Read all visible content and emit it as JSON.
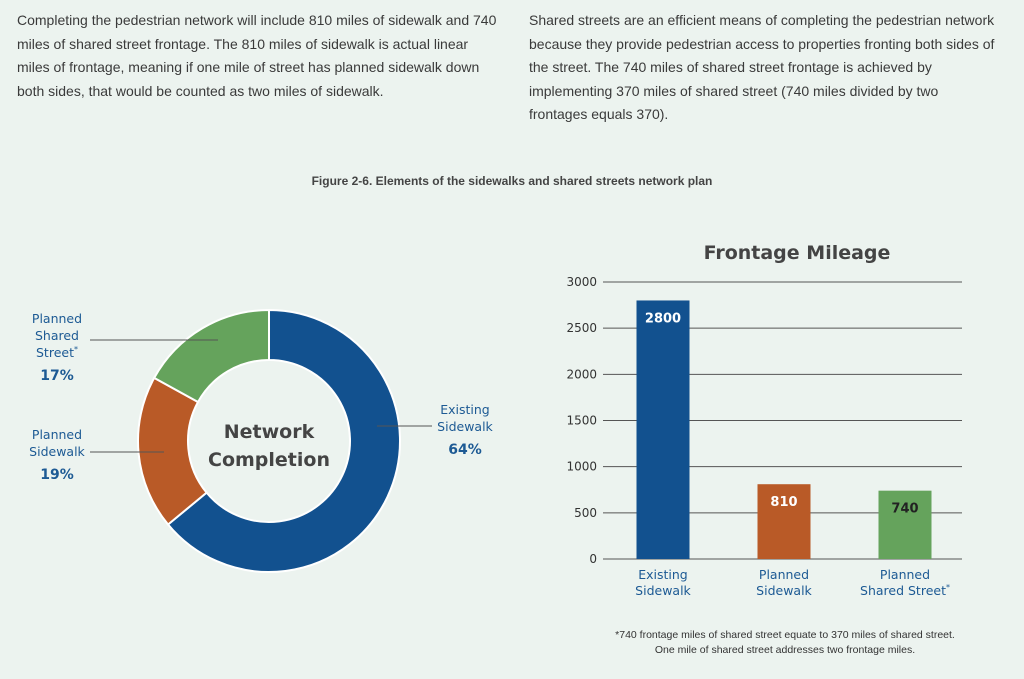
{
  "intro": {
    "left": "Completing the pedestrian network will include 810 miles of sidewalk and 740 miles of shared street frontage. The 810 miles of sidewalk is actual linear miles of frontage, meaning if one mile of street has planned sidewalk down both sides, that would be counted as two miles of sidewalk.",
    "right": "Shared streets are an efficient means of completing the pedestrian network because they provide pedestrian access to properties fronting both sides of the street. The 740 miles of shared street frontage is achieved by implementing 370 miles of shared street (740 miles divided by two frontages equals 370)."
  },
  "figure_caption": "Figure 2-6. Elements of the sidewalks and shared streets network plan",
  "footnote": "*740 frontage miles of shared street equate to 370 miles of shared street. One mile of shared street addresses two frontage miles.",
  "colors": {
    "existing": "#12518f",
    "planned_sidewalk": "#b95a27",
    "planned_shared": "#65a35c",
    "label_text": "#1d5a94",
    "grid": "#555555"
  },
  "chart_data": [
    {
      "type": "pie",
      "style": "donut",
      "center_title_lines": [
        "Network",
        "Completion"
      ],
      "slices": [
        {
          "label_lines": [
            "Existing",
            "Sidewalk"
          ],
          "value": 64,
          "value_label": "64%"
        },
        {
          "label_lines": [
            "Planned",
            "Sidewalk"
          ],
          "value": 19,
          "value_label": "19%"
        },
        {
          "label_lines": [
            "Planned",
            "Shared",
            "Street*"
          ],
          "value": 17,
          "value_label": "17%"
        }
      ]
    },
    {
      "type": "bar",
      "title": "Frontage Mileage",
      "categories": [
        [
          "Existing",
          "Sidewalk"
        ],
        [
          "Planned",
          "Sidewalk"
        ],
        [
          "Planned",
          "Shared Street*"
        ]
      ],
      "values": [
        2800,
        810,
        740
      ],
      "value_labels": [
        "2800",
        "810",
        "740"
      ],
      "yticks": [
        "0",
        "500",
        "1000",
        "1500",
        "2000",
        "2500",
        "3000"
      ],
      "ylim": [
        0,
        3000
      ],
      "grid": true
    }
  ]
}
